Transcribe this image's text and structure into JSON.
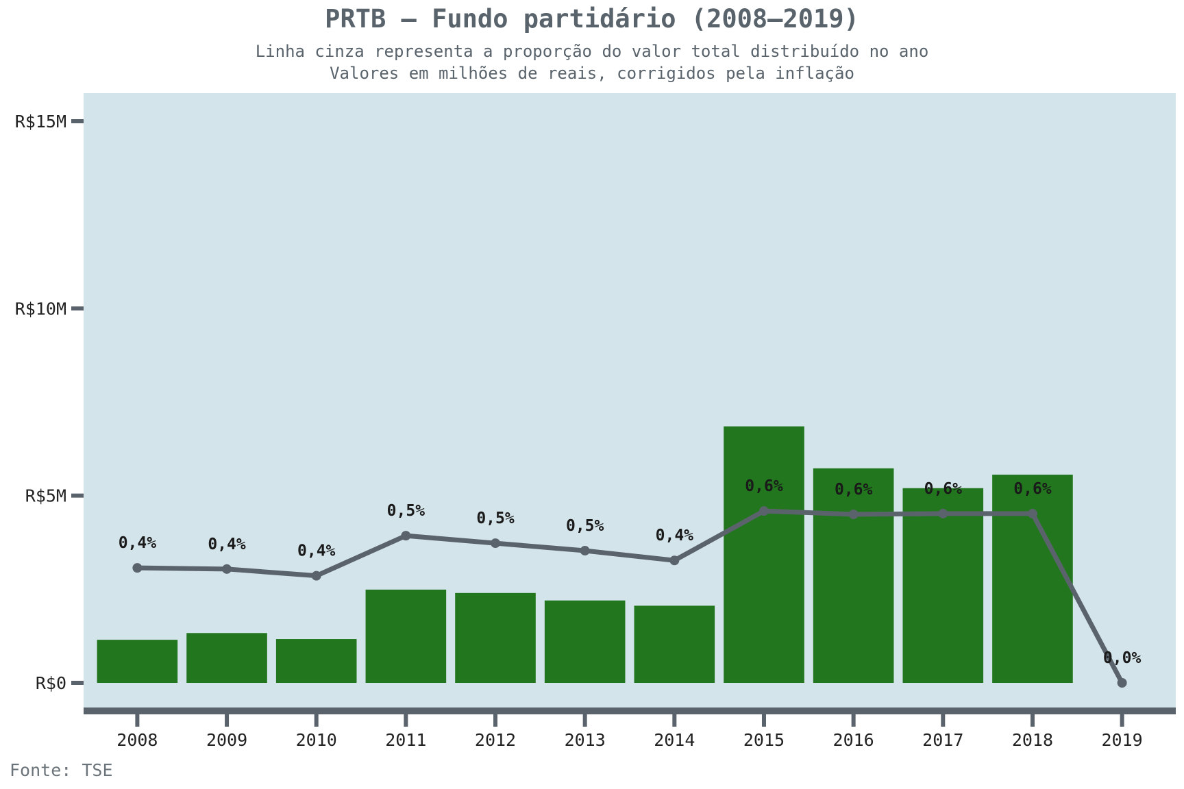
{
  "header": {
    "title": "PRTB – Fundo partidário (2008–2019)",
    "subtitle_line1": "Linha cinza representa a proporção do valor total distribuído no ano",
    "subtitle_line2": "Valores em milhões de reais, corrigidos pela inflação"
  },
  "caption": "Fonte: TSE",
  "colors": {
    "panel_background": "#d4e4eb",
    "bar": "#22771e",
    "line": "#5a636b",
    "axis": "#5a636b"
  },
  "chart_data": {
    "type": "bar",
    "categories": [
      "2008",
      "2009",
      "2010",
      "2011",
      "2012",
      "2013",
      "2014",
      "2015",
      "2016",
      "2017",
      "2018",
      "2019"
    ],
    "series": [
      {
        "type": "bar",
        "values": [
          1.15,
          1.33,
          1.17,
          2.49,
          2.4,
          2.2,
          2.06,
          6.85,
          5.73,
          5.2,
          5.56,
          0.0
        ]
      },
      {
        "type": "line",
        "values": [
          0.4,
          0.4,
          0.4,
          0.5,
          0.5,
          0.5,
          0.4,
          0.6,
          0.6,
          0.6,
          0.6,
          0.0
        ],
        "display_values": [
          3.07,
          3.04,
          2.86,
          3.93,
          3.73,
          3.53,
          3.27,
          4.59,
          4.5,
          4.52,
          4.52,
          0.0
        ],
        "labels": [
          "0,4%",
          "0,4%",
          "0,4%",
          "0,5%",
          "0,5%",
          "0,5%",
          "0,4%",
          "0,6%",
          "0,6%",
          "0,6%",
          "0,6%",
          "0,0%"
        ]
      }
    ],
    "ylim": [
      -0.75,
      15.75
    ],
    "y_ticks": [
      0,
      5,
      10,
      15
    ],
    "y_tick_labels": [
      "R$0",
      "R$5M",
      "R$10M",
      "R$15M"
    ],
    "grid": false,
    "legend": "none"
  }
}
